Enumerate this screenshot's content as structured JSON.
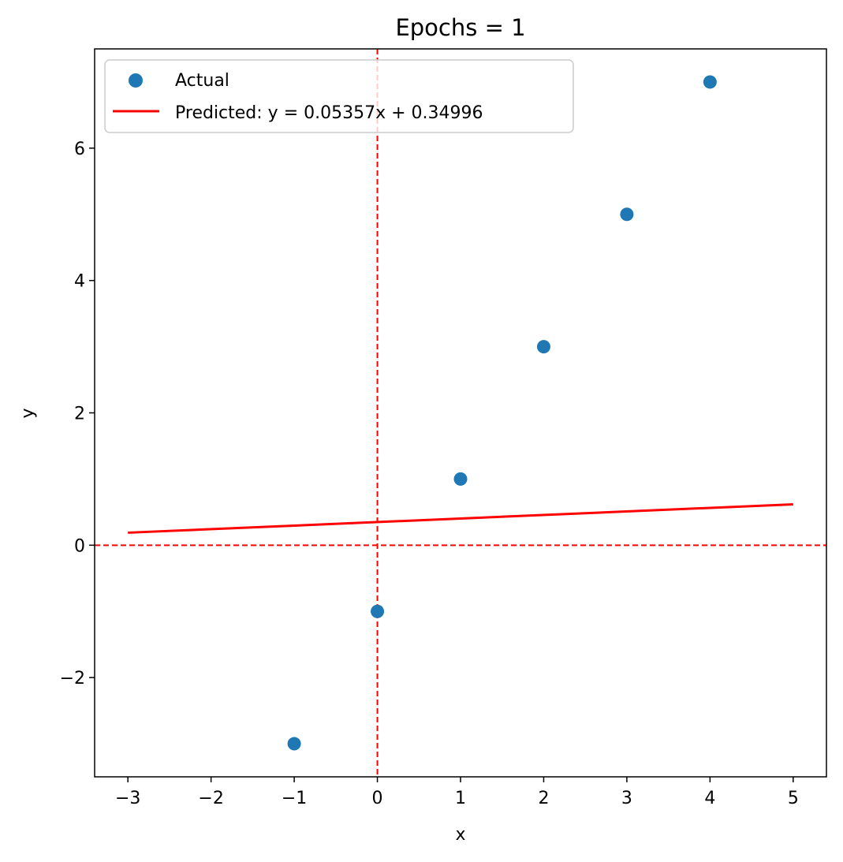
{
  "chart_data": {
    "type": "scatter",
    "title": "Epochs = 1",
    "xlabel": "x",
    "ylabel": "y",
    "xlim": [
      -3.4,
      5.4
    ],
    "ylim": [
      -3.5,
      7.5
    ],
    "x_ticks": [
      -3,
      -2,
      -1,
      0,
      1,
      2,
      3,
      4,
      5
    ],
    "y_ticks": [
      -2,
      0,
      2,
      4,
      6
    ],
    "grid": false,
    "legend_position": "top-left",
    "series": [
      {
        "name": "Actual",
        "kind": "scatter",
        "color": "#1f77b4",
        "points": [
          {
            "x": -1,
            "y": -3
          },
          {
            "x": 0,
            "y": -1
          },
          {
            "x": 1,
            "y": 1
          },
          {
            "x": 2,
            "y": 3
          },
          {
            "x": 3,
            "y": 5
          },
          {
            "x": 4,
            "y": 7
          }
        ]
      },
      {
        "name": "Predicted: y = 0.05357x + 0.34996",
        "kind": "line",
        "color": "#ff0000",
        "slope": 0.05357,
        "intercept": 0.34996,
        "x_range": [
          -3,
          5
        ]
      }
    ],
    "reference_lines": [
      {
        "orientation": "vertical",
        "value": 0,
        "color": "#ff0000",
        "style": "dashed"
      },
      {
        "orientation": "horizontal",
        "value": 0,
        "color": "#ff0000",
        "style": "dashed"
      }
    ]
  }
}
